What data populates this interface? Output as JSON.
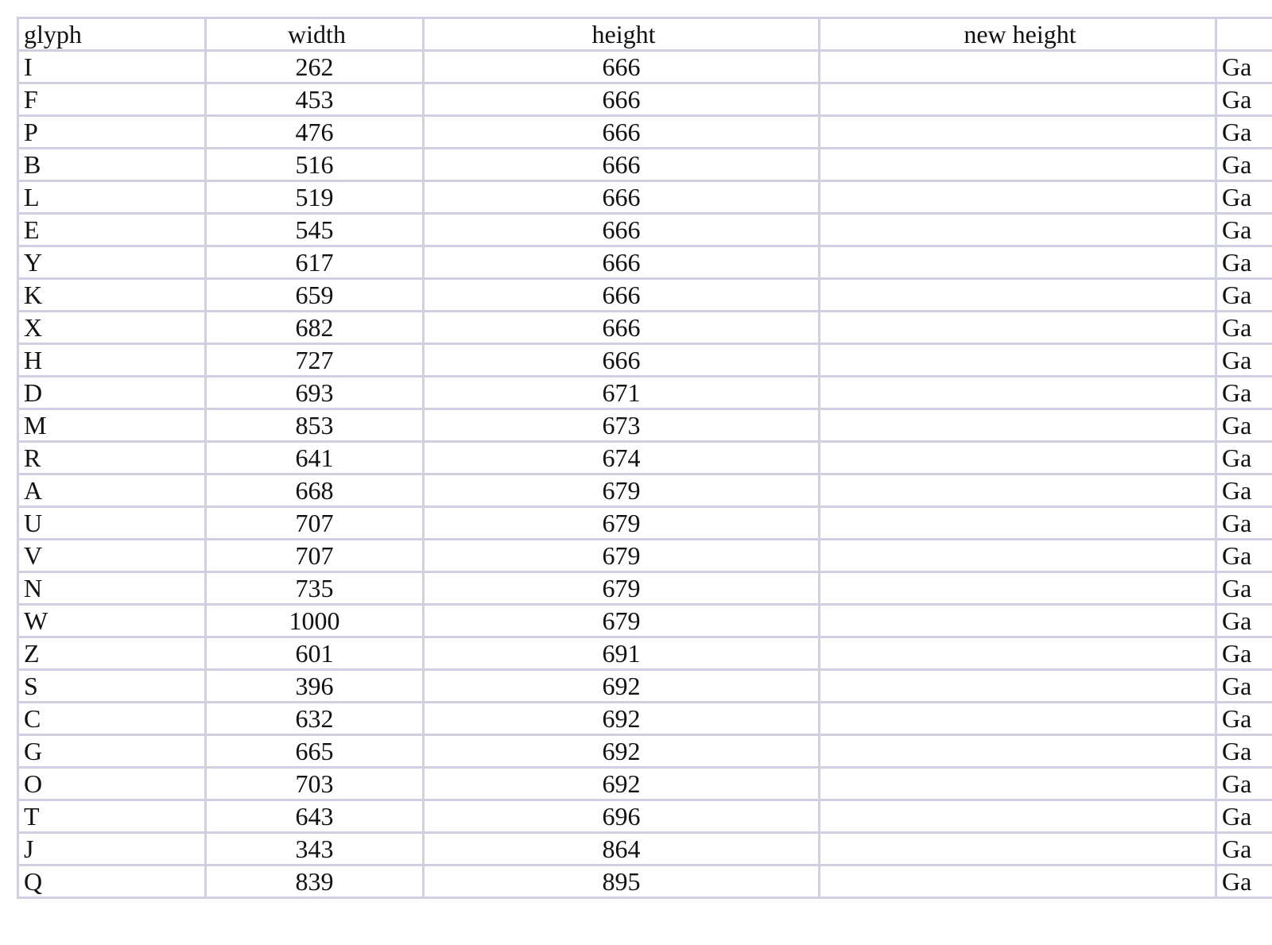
{
  "table": {
    "headers": {
      "glyph": "glyph",
      "width": "width",
      "height": "height",
      "new_height": "new height",
      "font": ""
    },
    "rows": [
      {
        "glyph": "I",
        "width": "262",
        "height": "666",
        "new_height": "",
        "font": "Ga"
      },
      {
        "glyph": "F",
        "width": "453",
        "height": "666",
        "new_height": "",
        "font": "Ga"
      },
      {
        "glyph": "P",
        "width": "476",
        "height": "666",
        "new_height": "",
        "font": "Ga"
      },
      {
        "glyph": "B",
        "width": "516",
        "height": "666",
        "new_height": "",
        "font": "Ga"
      },
      {
        "glyph": "L",
        "width": "519",
        "height": "666",
        "new_height": "",
        "font": "Ga"
      },
      {
        "glyph": "E",
        "width": "545",
        "height": "666",
        "new_height": "",
        "font": "Ga"
      },
      {
        "glyph": "Y",
        "width": "617",
        "height": "666",
        "new_height": "",
        "font": "Ga"
      },
      {
        "glyph": "K",
        "width": "659",
        "height": "666",
        "new_height": "",
        "font": "Ga"
      },
      {
        "glyph": "X",
        "width": "682",
        "height": "666",
        "new_height": "",
        "font": "Ga"
      },
      {
        "glyph": "H",
        "width": "727",
        "height": "666",
        "new_height": "",
        "font": "Ga"
      },
      {
        "glyph": "D",
        "width": "693",
        "height": "671",
        "new_height": "",
        "font": "Ga"
      },
      {
        "glyph": "M",
        "width": "853",
        "height": "673",
        "new_height": "",
        "font": "Ga"
      },
      {
        "glyph": "R",
        "width": "641",
        "height": "674",
        "new_height": "",
        "font": "Ga"
      },
      {
        "glyph": "A",
        "width": "668",
        "height": "679",
        "new_height": "",
        "font": "Ga"
      },
      {
        "glyph": "U",
        "width": "707",
        "height": "679",
        "new_height": "",
        "font": "Ga"
      },
      {
        "glyph": "V",
        "width": "707",
        "height": "679",
        "new_height": "",
        "font": "Ga"
      },
      {
        "glyph": "N",
        "width": "735",
        "height": "679",
        "new_height": "",
        "font": "Ga"
      },
      {
        "glyph": "W",
        "width": "1000",
        "height": "679",
        "new_height": "",
        "font": "Ga"
      },
      {
        "glyph": "Z",
        "width": "601",
        "height": "691",
        "new_height": "",
        "font": "Ga"
      },
      {
        "glyph": "S",
        "width": "396",
        "height": "692",
        "new_height": "",
        "font": "Ga"
      },
      {
        "glyph": "C",
        "width": "632",
        "height": "692",
        "new_height": "",
        "font": "Ga"
      },
      {
        "glyph": "G",
        "width": "665",
        "height": "692",
        "new_height": "",
        "font": "Ga"
      },
      {
        "glyph": "O",
        "width": "703",
        "height": "692",
        "new_height": "",
        "font": "Ga"
      },
      {
        "glyph": "T",
        "width": "643",
        "height": "696",
        "new_height": "",
        "font": "Ga"
      },
      {
        "glyph": "J",
        "width": "343",
        "height": "864",
        "new_height": "",
        "font": "Ga"
      },
      {
        "glyph": "Q",
        "width": "839",
        "height": "895",
        "new_height": "",
        "font": "Ga"
      }
    ]
  }
}
